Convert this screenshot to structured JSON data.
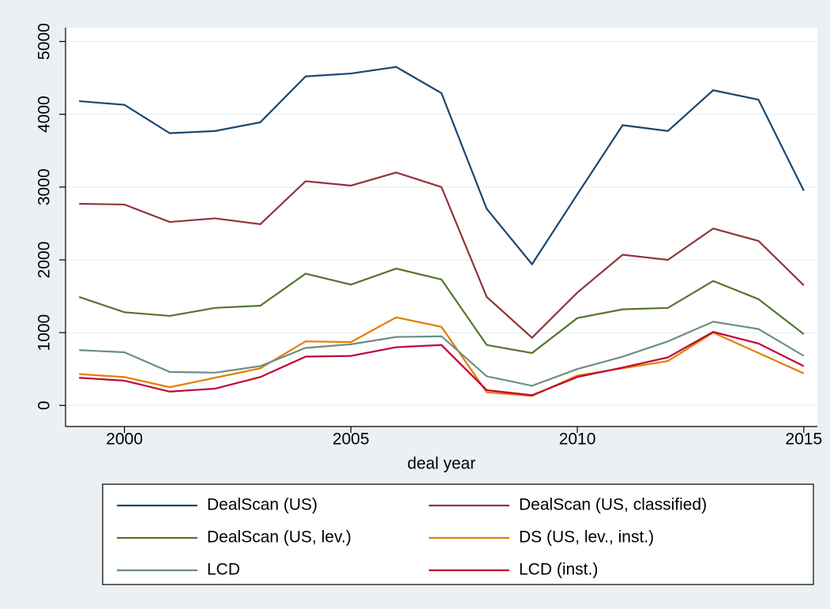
{
  "chart_data": {
    "type": "line",
    "x_label": "deal year",
    "x": [
      1999,
      2000,
      2001,
      2002,
      2003,
      2004,
      2005,
      2006,
      2007,
      2008,
      2009,
      2010,
      2011,
      2012,
      2013,
      2014,
      2015
    ],
    "xlim": [
      1998.7,
      2015.3
    ],
    "xticks": [
      2000,
      2005,
      2010,
      2015
    ],
    "ylim": [
      -290,
      5190
    ],
    "yticks": [
      0,
      1000,
      2000,
      3000,
      4000,
      5000
    ],
    "grid": true,
    "legend": "bottom",
    "series": [
      {
        "name": "DealScan (US)",
        "color": "#1a476f",
        "values": [
          4180,
          4130,
          3740,
          3770,
          3890,
          4520,
          4560,
          4650,
          4290,
          2700,
          1940,
          2900,
          3850,
          3770,
          4330,
          4200,
          2950
        ]
      },
      {
        "name": "DealScan (US, classified)",
        "color": "#90353b",
        "values": [
          2770,
          2760,
          2520,
          2570,
          2490,
          3080,
          3020,
          3200,
          3000,
          1490,
          930,
          1550,
          2070,
          2000,
          2430,
          2260,
          1650
        ]
      },
      {
        "name": "DealScan (US, lev.)",
        "color": "#55752f",
        "values": [
          1490,
          1280,
          1230,
          1340,
          1370,
          1810,
          1660,
          1880,
          1730,
          830,
          720,
          1200,
          1320,
          1340,
          1710,
          1460,
          980
        ]
      },
      {
        "name": "DS (US, lev., inst.)",
        "color": "#e37e00",
        "values": [
          430,
          390,
          250,
          380,
          510,
          880,
          870,
          1210,
          1080,
          180,
          130,
          410,
          510,
          610,
          1000,
          720,
          440
        ]
      },
      {
        "name": "LCD",
        "color": "#6e8e84",
        "values": [
          760,
          730,
          460,
          450,
          540,
          790,
          840,
          940,
          950,
          400,
          270,
          500,
          670,
          880,
          1150,
          1050,
          680
        ]
      },
      {
        "name": "LCD (inst.)",
        "color": "#c10534",
        "values": [
          380,
          340,
          190,
          230,
          390,
          670,
          680,
          800,
          830,
          210,
          140,
          390,
          520,
          660,
          1010,
          850,
          540
        ]
      }
    ]
  }
}
